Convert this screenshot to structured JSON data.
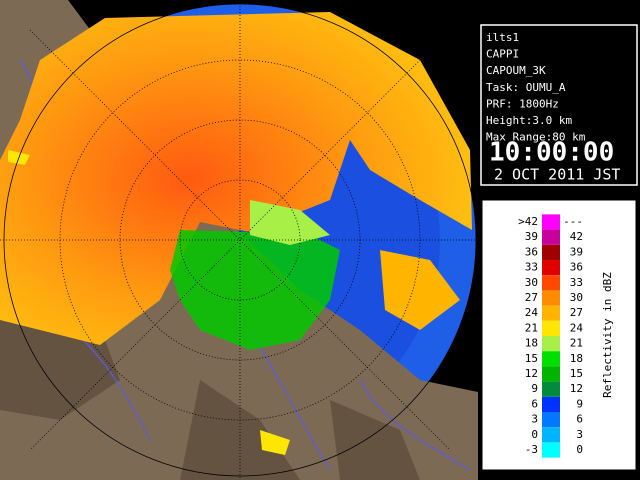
{
  "info": {
    "lines": [
      "ilts1",
      "CAPPI",
      "CAPOUM_3K",
      "Task: OUMU_A",
      "PRF: 1800Hz",
      "Height:3.0 km",
      "Max Range:80 km"
    ],
    "time": "10:00:00",
    "date": "2 OCT 2011 JST"
  },
  "legend": {
    "title": "Reflectivity in dBZ",
    "rows": [
      {
        "from": ">42",
        "to": "---",
        "color": "#ff00ff"
      },
      {
        "from": "39",
        "to": "42",
        "color": "#c8009c"
      },
      {
        "from": "36",
        "to": "39",
        "color": "#a00000"
      },
      {
        "from": "33",
        "to": "36",
        "color": "#e00000"
      },
      {
        "from": "30",
        "to": "33",
        "color": "#ff4800"
      },
      {
        "from": "27",
        "to": "30",
        "color": "#ff8c00"
      },
      {
        "from": "24",
        "to": "27",
        "color": "#ffb400"
      },
      {
        "from": "21",
        "to": "24",
        "color": "#ffe600"
      },
      {
        "from": "18",
        "to": "21",
        "color": "#a8f048"
      },
      {
        "from": "15",
        "to": "18",
        "color": "#00e000"
      },
      {
        "from": "12",
        "to": "15",
        "color": "#00b400"
      },
      {
        "from": "9",
        "to": "12",
        "color": "#008c3c"
      },
      {
        "from": "6",
        "to": "9",
        "color": "#0032ff"
      },
      {
        "from": "3",
        "to": "6",
        "color": "#0078ff"
      },
      {
        "from": "0",
        "to": "3",
        "color": "#00b4ff"
      },
      {
        "from": "-3",
        "to": "0",
        "color": "#00ffff"
      }
    ]
  }
}
